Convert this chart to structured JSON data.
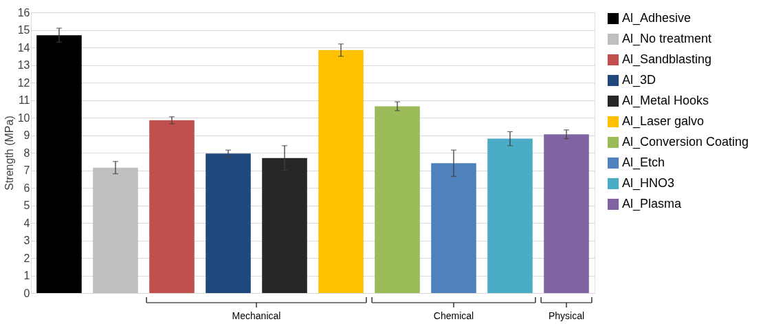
{
  "chart_data": {
    "type": "bar",
    "ylabel": "Strength (MPa)",
    "categories": [
      null
    ],
    "series": [
      {
        "name": "Al_Adhesive",
        "color": "#000000",
        "values": [
          14.7
        ],
        "errors": [
          0.4
        ]
      },
      {
        "name": "Al_No treatment",
        "color": "#bfbfbf",
        "values": [
          7.15
        ],
        "errors": [
          0.35
        ]
      },
      {
        "name": "Al_Sandblasting",
        "color": "#c0504d",
        "values": [
          9.85
        ],
        "errors": [
          0.2
        ]
      },
      {
        "name": "Al_3D",
        "color": "#1f497d",
        "values": [
          7.95
        ],
        "errors": [
          0.2
        ]
      },
      {
        "name": "Al_Metal Hooks",
        "color": "#262626",
        "values": [
          7.7
        ],
        "errors": [
          0.7
        ]
      },
      {
        "name": "Al_Laser galvo",
        "color": "#ffc000",
        "values": [
          13.85
        ],
        "errors": [
          0.35
        ]
      },
      {
        "name": "Al_Conversion Coating",
        "color": "#9bbb59",
        "values": [
          10.65
        ],
        "errors": [
          0.25
        ]
      },
      {
        "name": "Al_Etch",
        "color": "#4f81bd",
        "values": [
          7.4
        ],
        "errors": [
          0.75
        ]
      },
      {
        "name": "Al_HNO3",
        "color": "#4bacc6",
        "values": [
          8.8
        ],
        "errors": [
          0.4
        ]
      },
      {
        "name": "Al_Plasma",
        "color": "#8064a2",
        "values": [
          9.05
        ],
        "errors": [
          0.25
        ]
      }
    ],
    "ylim": [
      0,
      16
    ],
    "yticks": [
      0,
      1,
      2,
      3,
      4,
      5,
      6,
      7,
      8,
      9,
      10,
      11,
      12,
      13,
      14,
      15,
      16
    ],
    "grid": "y",
    "legend": "right",
    "tick_labels": "y",
    "annotations": [
      "Mechanical",
      "Chemical",
      "Physical"
    ]
  }
}
